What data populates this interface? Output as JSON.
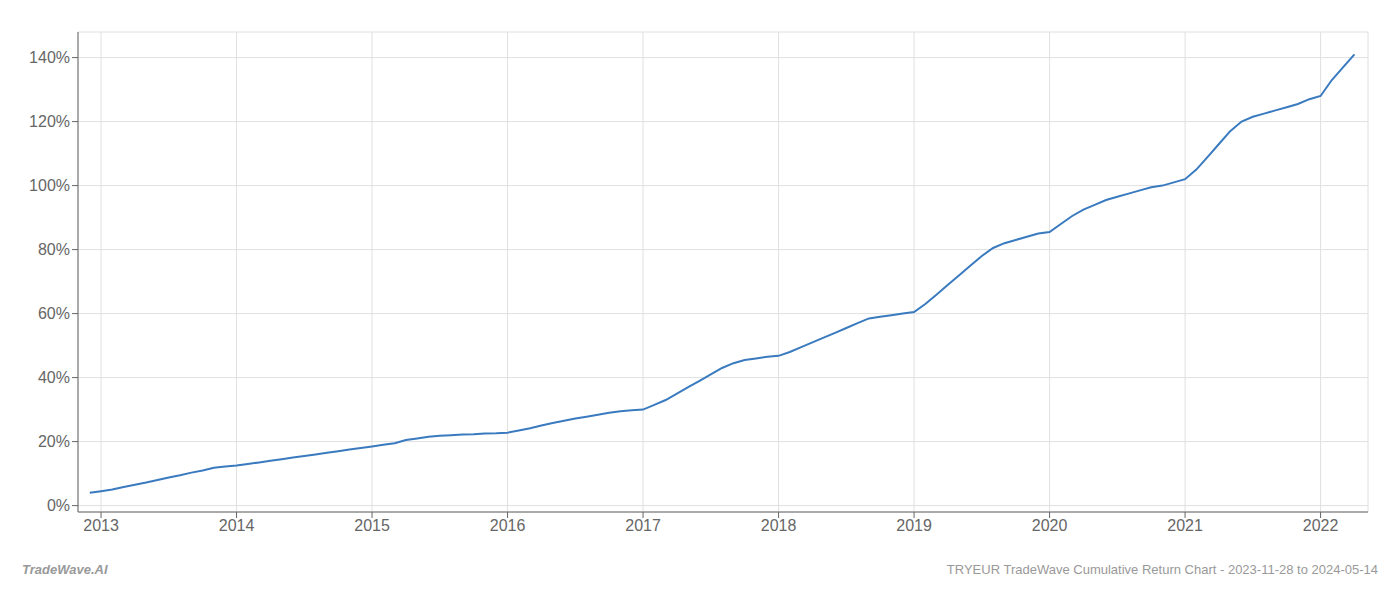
{
  "chart_data": {
    "type": "line",
    "title": "TRYEUR TradeWave Cumulative Return Chart - 2023-11-28 to 2024-05-14",
    "annotations": [
      "TradeWave.AI"
    ],
    "x": [
      2012.917,
      2013.0,
      2013.083,
      2013.167,
      2013.25,
      2013.333,
      2013.417,
      2013.5,
      2013.583,
      2013.667,
      2013.75,
      2013.833,
      2013.917,
      2014.0,
      2014.083,
      2014.167,
      2014.25,
      2014.333,
      2014.417,
      2014.5,
      2014.583,
      2014.667,
      2014.75,
      2014.833,
      2014.917,
      2015.0,
      2015.083,
      2015.167,
      2015.25,
      2015.333,
      2015.417,
      2015.5,
      2015.583,
      2015.667,
      2015.75,
      2015.833,
      2015.917,
      2016.0,
      2016.083,
      2016.167,
      2016.25,
      2016.333,
      2016.417,
      2016.5,
      2016.583,
      2016.667,
      2016.75,
      2016.833,
      2016.917,
      2017.0,
      2017.083,
      2017.167,
      2017.25,
      2017.333,
      2017.417,
      2017.5,
      2017.583,
      2017.667,
      2017.75,
      2017.833,
      2017.917,
      2018.0,
      2018.083,
      2018.167,
      2018.25,
      2018.333,
      2018.417,
      2018.5,
      2018.583,
      2018.667,
      2018.75,
      2018.833,
      2018.917,
      2019.0,
      2019.083,
      2019.167,
      2019.25,
      2019.333,
      2019.417,
      2019.5,
      2019.583,
      2019.667,
      2019.75,
      2019.833,
      2019.917,
      2020.0,
      2020.083,
      2020.167,
      2020.25,
      2020.333,
      2020.417,
      2020.5,
      2020.583,
      2020.667,
      2020.75,
      2020.833,
      2020.917,
      2021.0,
      2021.083,
      2021.167,
      2021.25,
      2021.333,
      2021.417,
      2021.5,
      2021.583,
      2021.667,
      2021.75,
      2021.833,
      2021.917,
      2022.0,
      2022.083,
      2022.167,
      2022.25
    ],
    "values": [
      4.0,
      4.5,
      5.0,
      5.8,
      6.5,
      7.2,
      8.0,
      8.8,
      9.5,
      10.3,
      11.0,
      11.8,
      12.2,
      12.5,
      13.0,
      13.5,
      14.0,
      14.5,
      15.0,
      15.5,
      16.0,
      16.5,
      17.0,
      17.5,
      18.0,
      18.5,
      19.0,
      19.5,
      20.5,
      21.0,
      21.5,
      21.8,
      22.0,
      22.2,
      22.3,
      22.5,
      22.6,
      22.8,
      23.5,
      24.2,
      25.0,
      25.8,
      26.5,
      27.2,
      27.8,
      28.4,
      29.0,
      29.5,
      29.8,
      30.0,
      31.5,
      33.0,
      35.0,
      37.0,
      39.0,
      41.0,
      43.0,
      44.5,
      45.5,
      46.0,
      46.5,
      46.8,
      48.0,
      49.5,
      51.0,
      52.5,
      54.0,
      55.5,
      57.0,
      58.5,
      59.0,
      59.5,
      60.0,
      60.5,
      63.0,
      66.0,
      69.0,
      72.0,
      75.0,
      78.0,
      80.5,
      82.0,
      83.0,
      84.0,
      85.0,
      85.5,
      88.0,
      90.5,
      92.5,
      94.0,
      95.5,
      96.5,
      97.5,
      98.5,
      99.5,
      100.0,
      101.0,
      102.0,
      105.0,
      109.0,
      113.0,
      117.0,
      120.0,
      121.5,
      122.5,
      123.5,
      124.5,
      125.5,
      127.0,
      128.0,
      133.0,
      137.0,
      141.0
    ],
    "color": "#3a7abf",
    "xlim": [
      2012.83,
      2022.35
    ],
    "ylim": [
      -2.0,
      148.0
    ],
    "xticks": [
      2013,
      2014,
      2015,
      2016,
      2017,
      2018,
      2019,
      2020,
      2021,
      2022
    ],
    "yticks": [
      {
        "value": 0,
        "label": "0%"
      },
      {
        "value": 20,
        "label": "20%"
      },
      {
        "value": 40,
        "label": "40%"
      },
      {
        "value": 60,
        "label": "60%"
      },
      {
        "value": 80,
        "label": "80%"
      },
      {
        "value": 100,
        "label": "100%"
      },
      {
        "value": 120,
        "label": "120%"
      },
      {
        "value": 140,
        "label": "140%"
      }
    ],
    "grid": true
  }
}
